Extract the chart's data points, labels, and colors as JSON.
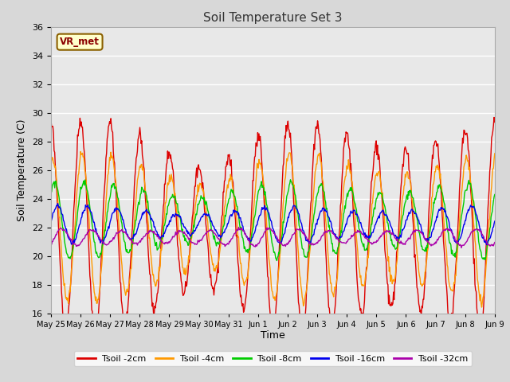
{
  "title": "Soil Temperature Set 3",
  "xlabel": "Time",
  "ylabel": "Soil Temperature (C)",
  "ylim": [
    16,
    36
  ],
  "yticks": [
    16,
    18,
    20,
    22,
    24,
    26,
    28,
    30,
    32,
    34,
    36
  ],
  "plot_bg": "#e8e8e8",
  "fig_bg": "#d8d8d8",
  "grid_color": "#ffffff",
  "annotation_text": "VR_met",
  "annotation_bg": "#ffffcc",
  "annotation_border": "#8b6000",
  "series_colors": {
    "Tsoil -2cm": "#dd0000",
    "Tsoil -4cm": "#ff9900",
    "Tsoil -8cm": "#00cc00",
    "Tsoil -16cm": "#0000ee",
    "Tsoil -32cm": "#aa00aa"
  },
  "time_span_days": 15,
  "n_points": 720,
  "tick_days": [
    0,
    1,
    2,
    3,
    4,
    5,
    6,
    7,
    8,
    9,
    10,
    11,
    12,
    13,
    14,
    15
  ],
  "tick_labels": [
    "May 25",
    "May 26",
    "May 27",
    "May 28",
    "May 29",
    "May 30",
    "May 31",
    "Jun 1",
    "Jun 2",
    "Jun 3",
    "Jun 4",
    "Jun 5",
    "Jun 6",
    "Jun 7",
    "Jun 8",
    "Jun 9"
  ]
}
